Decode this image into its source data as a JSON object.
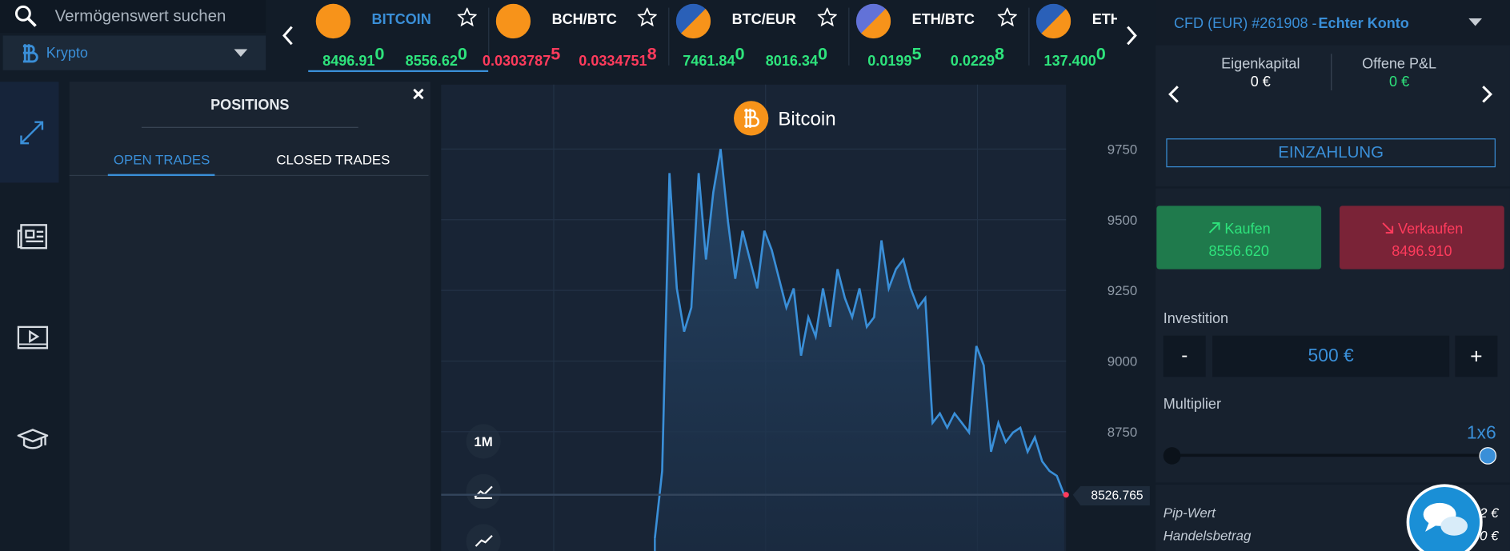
{
  "search": {
    "placeholder": "Vermögenswert suchen",
    "category": "Krypto"
  },
  "tickers": [
    {
      "name": "BITCOIN",
      "bid": "8496.91",
      "bid_pip": "0",
      "ask": "8556.62",
      "ask_pip": "0"
    },
    {
      "name": "BCH/BTC",
      "bid": "0.0303787",
      "bid_pip": "5",
      "ask": "0.0334751",
      "ask_pip": "8"
    },
    {
      "name": "BTC/EUR",
      "bid": "7461.84",
      "bid_pip": "0",
      "ask": "8016.34",
      "ask_pip": "0"
    },
    {
      "name": "ETH/BTC",
      "bid": "0.0199",
      "bid_pip": "5",
      "ask": "0.0229",
      "ask_pip": "8"
    },
    {
      "name": "ETH",
      "bid": "137.400",
      "bid_pip": "0"
    }
  ],
  "positions": {
    "title": "POSITIONS",
    "close": "×",
    "tabs": [
      "OPEN TRADES",
      "CLOSED TRADES"
    ]
  },
  "chart_data": {
    "type": "line",
    "title": "Bitcoin",
    "timeframe": "1M",
    "color": "#3a8fd8",
    "values": [
      8373,
      8611,
      9665,
      9257,
      9104,
      9189,
      9665,
      9359,
      9597,
      9750,
      9495,
      9291,
      9461,
      9359,
      9257,
      9461,
      9393,
      9291,
      9189,
      9257,
      9019,
      9155,
      9087,
      9257,
      9121,
      9325,
      9223,
      9155,
      9257,
      9121,
      9155,
      9427,
      9257,
      9325,
      9359,
      9257,
      9189,
      9223,
      8781,
      8815,
      8764,
      8815,
      8781,
      8747,
      9053,
      8985,
      8679,
      8781,
      8713,
      8747,
      8764,
      8679,
      8730,
      8645,
      8611,
      8594,
      8527
    ],
    "ylim": [
      8328,
      9978
    ],
    "yticks": [
      8750,
      9000,
      9250,
      9500,
      9750
    ],
    "current_price": 8526.765,
    "grid": true
  },
  "account": {
    "name": "CFD (EUR) #261908 - ",
    "type": "Echter Konto",
    "equity_label": "Eigenkapital",
    "equity": "0 €",
    "pl_label": "Offene P&L",
    "pl": "0 €",
    "deposit": "EINZAHLUNG",
    "buy_label": "Kaufen",
    "buy_price": "8556.620",
    "sell_label": "Verkaufen",
    "sell_price": "8496.910",
    "investment_label": "Investition",
    "minus": "-",
    "investment": "500 €",
    "plus": "+",
    "multiplier_label": "Multiplier",
    "multiplier": "1x6",
    "pip_label": "Pip-Wert",
    "pip": "2 €",
    "amount_label": "Handelsbetrag",
    "amount": "0 €"
  }
}
